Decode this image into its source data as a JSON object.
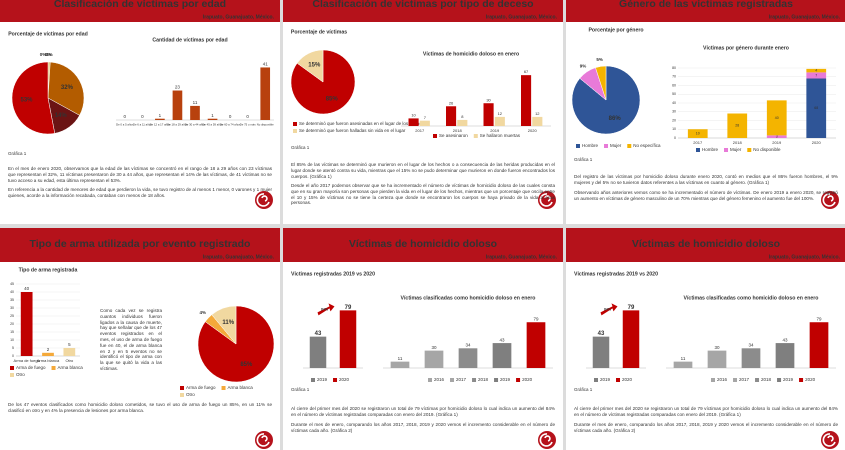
{
  "slides": [
    {
      "title": "Clasificación de víctimas por edad",
      "location": "Irapuato, Guanajuato, México.",
      "note": "Gráfica 1",
      "paragraphs": [
        "En el mes de enero 2020, observamos que la edad de las víctimas se concentró en el rango de 18 a 29 años con 23 víctimas que representan el 32%, 11 víctimas presentaron de 30 a 44 años, que representan el 14% de las víctimas, de 41 víctimas no se tuvo acceso a su edad, esta última representan el 53%.",
        "En referencia a la cantidad de menores de edad que perdieron la vida, se tuvo registro de al menos 1 menor, 0 varones y 1 mujer quienes, acorde a la información recabada, contaban con menos de 18 años."
      ],
      "charts": [
        {
          "type": "pie",
          "title": "Porcentaje de víctimas por edad",
          "values": [
            0,
            0,
            1,
            32,
            14,
            53
          ],
          "value_labels": [
            "0%",
            "0%",
            "1%",
            "32%",
            "14%",
            "53%"
          ],
          "colors": [
            "#f4b183",
            "#f1d8a0",
            "#e0c070",
            "#b35c00",
            "#6b1414",
            "#c00000"
          ]
        },
        {
          "type": "bar",
          "title": "Cantidad de víctimas por edad",
          "categories": [
            "De 0 a 5 años",
            "De 6 a 11 años",
            "De 12 a 17 años",
            "De 18 a 29 años",
            "De 30 a 44 años",
            "De 45 a 59 años",
            "De 60 a 74 años",
            "De 75 o más",
            "No disponible"
          ],
          "values": [
            0,
            0,
            1,
            23,
            11,
            1,
            0,
            0,
            41
          ],
          "color": "#b8410e"
        }
      ]
    },
    {
      "title": "Clasificación de víctimas por tipo de deceso",
      "location": "Irapuato, Guanajuato, México.",
      "note": "Gráfica 1",
      "paragraphs": [
        "El 85% de las víctimas se determinó que murieron en el lugar de los hechos o a consecuencia de las heridas producidas en el lugar donde se atentó contra su vida, mientras que el 15% no se pudo determinar que murieron en donde fueron encontrados los cuerpos. (Gráfica 1)",
        "Desde el año 2017 podemos observar que se ha incrementado el número de víctimas de homicidio doloso de las cuales consta que en su gran mayoría son personas que pierden la vida en el lugar de los hechos, mientras que un porcentaje que oscila entre el 10 y 15% de víctimas no se tiene la certeza que donde se encontraron los cuerpos se haya privado de la vida a esas personas."
      ],
      "charts": [
        {
          "type": "pie",
          "title": "Porcentaje de víctimas",
          "categories": [
            "Se determinó que fueron asesinadas en el lugar de los hechos",
            "Se determinó que fueron halladas sin vida en el lugar"
          ],
          "values": [
            85,
            15
          ],
          "value_labels": [
            "85%",
            "15%"
          ],
          "colors": [
            "#c00000",
            "#f1d8a0"
          ]
        },
        {
          "type": "grouped",
          "title": "Víctimas de homicidio doloso en enero",
          "categories": [
            "2017",
            "2018",
            "2019",
            "2020"
          ],
          "series": [
            {
              "name": "Se asesinaron",
              "color": "#c00000",
              "values": [
                10,
                26,
                30,
                67
              ]
            },
            {
              "name": "Se hallaron muertas",
              "color": "#f1d8a0",
              "values": [
                7,
                8,
                12,
                12
              ]
            }
          ]
        }
      ]
    },
    {
      "title": "Género de las víctimas registradas",
      "location": "Irapuato, Guanajuato, México.",
      "note": "Gráfica 1",
      "paragraphs": [
        "Del registro de las víctimas por homicidio doloso durante enero 2020, contó en medios que el 86% fueron hombres, el 9% mujeres y del 5% no se tuvieron datos referentes a las víctimas en cuanto al género. (Gráfica 1)",
        "Observando años anteriores vemos como se ha incrementado el número de víctimas. De enero 2019 a enero 2020, se registró un aumento en víctimas de género masculino de un 70% mientras que del género femenino el aumento fue del 100%."
      ],
      "charts": [
        {
          "type": "pie",
          "title": "Porcentaje por género",
          "categories": [
            "Hombre",
            "Mujer",
            "No específica"
          ],
          "values": [
            86,
            9,
            5
          ],
          "value_labels": [
            "86%",
            "9%",
            "5%"
          ],
          "colors": [
            "#2f5597",
            "#e87ad8",
            "#f4b400"
          ]
        },
        {
          "type": "stacked",
          "title": "Víctimas por género durante enero",
          "categories": [
            "2017",
            "2018",
            "2019",
            "2020"
          ],
          "ylim": [
            0,
            80
          ],
          "yticks": [
            0,
            10,
            20,
            30,
            40,
            50,
            60,
            70,
            80
          ],
          "series": [
            {
              "name": "Hombre",
              "color": "#2f5597",
              "values": [
                0,
                0,
                0,
                68
              ]
            },
            {
              "name": "Mujer",
              "color": "#e87ad8",
              "values": [
                0,
                0,
                3,
                7
              ]
            },
            {
              "name": "No disponible",
              "color": "#f4b400",
              "values": [
                10,
                28,
                40,
                4
              ]
            }
          ]
        }
      ]
    },
    {
      "title": "Tipo de arma utilizada por evento registrado",
      "location": "Irapuato, Guanajuato, México.",
      "paragraphs": [
        "Como cada vez se registra cuantos individuos fueron ligados a la causa de muerte, hay que señalar que de los 47 eventos registrados en el mes, el uso de arma de fuego fue en 40, el de arma blanca en 2 y en 5 eventos no se identificó el tipo de arma con la que se quitó la vida a las víctimas.",
        "De los 47 eventos clasificados como homicidio doloso cometidos, se tuvo el uso de arma de fuego un 85%, en un 11% se clasificó en otro y en 4% la presencia de lesiones por arma blanca."
      ],
      "charts": [
        {
          "type": "bar",
          "title": "Tipo de arma registrada",
          "categories": [
            "Arma de fuego",
            "Arma blanca",
            "Otro"
          ],
          "values": [
            40,
            2,
            5
          ],
          "colors": [
            "#c00000",
            "#f4a93a",
            "#f1d8a0"
          ],
          "ylim": [
            0,
            45
          ],
          "yticks": [
            0,
            5,
            10,
            15,
            20,
            25,
            30,
            35,
            40,
            45
          ],
          "legend": true
        },
        {
          "type": "pie",
          "categories": [
            "Arma de fuego",
            "Arma blanca",
            "Otro"
          ],
          "values": [
            85,
            4,
            11
          ],
          "value_labels": [
            "85%",
            "4%",
            "11%"
          ],
          "colors": [
            "#c00000",
            "#f4a93a",
            "#f1d8a0"
          ]
        }
      ]
    },
    {
      "title": "Víctimas de homicidio doloso",
      "location": "Irapuato, Guanajuato, México.",
      "note": "Gráfica 1",
      "paragraphs": [
        "Al cierre del primer mes del 2020 se registraron un total de 79 víctimas por homicidio doloso lo cual indica un aumento del 84% en el número de víctimas registradas comparadas con enero del 2019. (Gráfica 1)",
        "Durante el mes de enero, comparando los años 2017, 2018, 2019 y 2020 vemos el incremento considerable en el número de víctimas cada año. (Gráfica 2)"
      ],
      "charts": [
        {
          "type": "bar",
          "title": "Víctimas registradas 2019 vs 2020",
          "categories": [
            "2019",
            "2020"
          ],
          "values": [
            43,
            79
          ],
          "colors": [
            "#7f7f7f",
            "#c00000"
          ],
          "legend": true,
          "annotation": "84%"
        },
        {
          "type": "bar",
          "title": "Víctimas clasificadas como homicidio doloso en enero",
          "categories": [
            "2016",
            "2017",
            "2018",
            "2019",
            "2020"
          ],
          "values": [
            11,
            30,
            34,
            43,
            79
          ],
          "colors": [
            "#a6a6a6",
            "#a6a6a6",
            "#8c8c8c",
            "#7f7f7f",
            "#c00000"
          ],
          "legend": true
        }
      ]
    },
    {
      "title": "Víctimas de homicidio doloso",
      "location": "Irapuato, Guanajuato, México.",
      "note": "Gráfica 1",
      "paragraphs": [
        "Al cierre del primer mes del 2020 se registraron un total de 79 víctimas por homicidio doloso lo cual indica un aumento del 84% en el número de víctimas registradas comparadas con enero del 2019. (Gráfica 1)",
        "Durante el mes de enero, comparando los años 2017, 2018, 2019 y 2020 vemos el incremento considerable en el número de víctimas cada año. (Gráfica 2)"
      ],
      "charts": [
        {
          "type": "bar",
          "title": "Víctimas registradas 2019 vs 2020",
          "categories": [
            "2019",
            "2020"
          ],
          "values": [
            43,
            79
          ],
          "colors": [
            "#7f7f7f",
            "#c00000"
          ],
          "legend": true,
          "annotation": "84%"
        },
        {
          "type": "bar",
          "title": "Víctimas clasificadas como homicidio doloso en enero",
          "categories": [
            "2016",
            "2017",
            "2018",
            "2019",
            "2020"
          ],
          "values": [
            11,
            30,
            34,
            43,
            79
          ],
          "colors": [
            "#a6a6a6",
            "#a6a6a6",
            "#8c8c8c",
            "#7f7f7f",
            "#c00000"
          ],
          "legend": true
        }
      ]
    }
  ]
}
